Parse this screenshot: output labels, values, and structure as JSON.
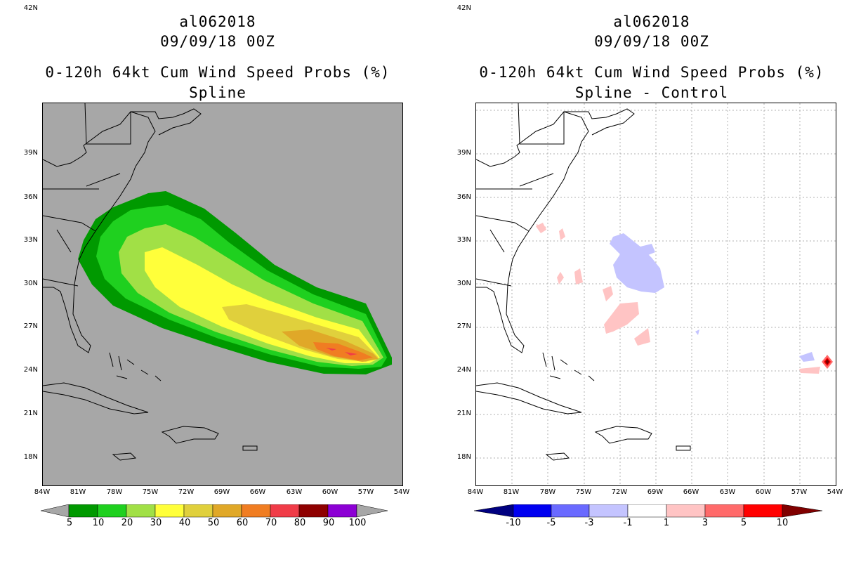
{
  "panels": [
    {
      "storm_id": "al062018",
      "datetime": "09/09/18 00Z",
      "product": "0-120h 64kt Cum Wind Speed Probs (%)",
      "subtitle": "Spline",
      "background": "#a7a7a7",
      "colorbar": {
        "colors": [
          "#a7a7a7",
          "#009900",
          "#1fd01f",
          "#a1e046",
          "#ffff3a",
          "#e0d03c",
          "#e0a828",
          "#f07d22",
          "#f03c48",
          "#8e0000",
          "#8c00d4",
          "#a7a7a7"
        ],
        "labels": [
          "5",
          "10",
          "20",
          "30",
          "40",
          "50",
          "60",
          "70",
          "80",
          "90",
          "100"
        ]
      }
    },
    {
      "storm_id": "al062018",
      "datetime": "09/09/18 00Z",
      "product": "0-120h 64kt Cum Wind Speed Probs (%)",
      "subtitle": "Spline - Control",
      "background": "#ffffff",
      "colorbar": {
        "colors": [
          "#000080",
          "#0000f0",
          "#6a6aff",
          "#c4c4ff",
          "#ffffff",
          "#ffc4c4",
          "#ff6a6a",
          "#ff0000",
          "#800000"
        ],
        "labels": [
          "-10",
          "-5",
          "-3",
          "-1",
          "1",
          "3",
          "5",
          "10"
        ]
      }
    }
  ],
  "lat_labels": [
    "42N",
    "39N",
    "36N",
    "33N",
    "30N",
    "27N",
    "24N",
    "21N",
    "18N"
  ],
  "lon_labels": [
    "84W",
    "81W",
    "78W",
    "75W",
    "72W",
    "69W",
    "66W",
    "63W",
    "60W",
    "57W",
    "54W"
  ]
}
